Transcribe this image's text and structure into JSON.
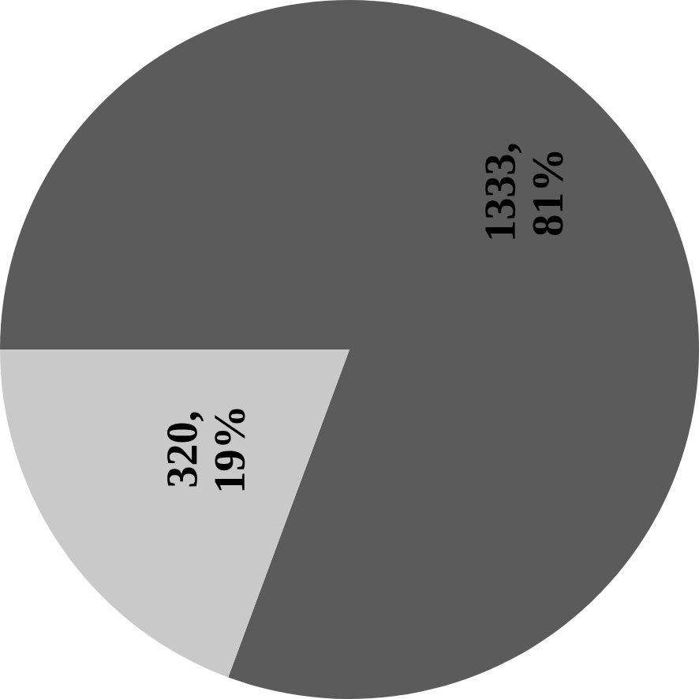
{
  "chart_data": {
    "type": "pie",
    "categories": [
      null,
      null
    ],
    "values": [
      1333,
      320
    ],
    "colors": [
      "#5b5b5b",
      "#c9c9c9"
    ],
    "value_labels": [
      "1333, 81%",
      "320, 19%"
    ]
  }
}
